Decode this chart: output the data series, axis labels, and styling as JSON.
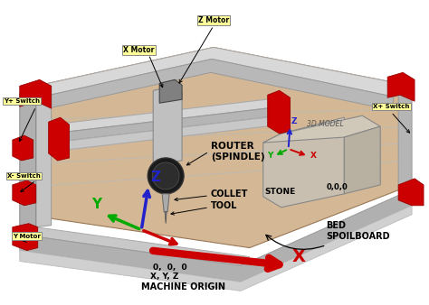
{
  "bg_color": "#ffffff",
  "machine_body_color": "#d4b896",
  "frame_silver": "#c8c8c8",
  "frame_dark": "#a0a0a0",
  "red_color": "#cc0000",
  "axis_x_color": "#cc0000",
  "axis_y_color": "#00aa00",
  "axis_z_color": "#2222cc",
  "label_bg": "#ffff99",
  "label_edge": "#888888",
  "labels": {
    "z_motor": "Z Motor",
    "x_motor": "X Motor",
    "y_plus_switch": "Y+ Switch",
    "x_plus_switch": "X+ Switch",
    "x_minus_switch": "X- Switch",
    "y_motor": "Y Motor",
    "router": "ROUTER\n(SPINDLE)",
    "collet": "COLLET",
    "tool": "TOOL",
    "origin_coords_1": "0,  0,  0",
    "origin_coords_2": "X, Y, Z",
    "origin_coords_3": "MACHINE ORIGIN",
    "bed": "BED\nSPOILBOARD",
    "stone": "STONE",
    "model_3d": "3D MODEL",
    "coords_small": "0,0,0"
  },
  "axis_labels": {
    "x": "X",
    "y": "Y",
    "z": "Z"
  },
  "figsize": [
    4.74,
    3.38
  ],
  "dpi": 100
}
